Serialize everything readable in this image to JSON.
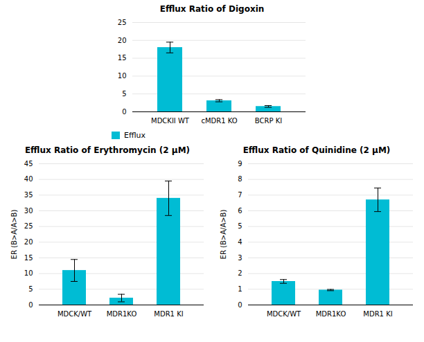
{
  "chart_data": [
    {
      "type": "bar",
      "title": "Efflux Ratio of Digoxin",
      "categories": [
        "MDCKII WT",
        "cMDR1 KO",
        "BCRP KI"
      ],
      "series": [
        {
          "name": "Efflux",
          "color": "#00BCD4",
          "values": [
            18.0,
            3.1,
            1.5
          ],
          "errors": [
            1.5,
            0.3,
            0.25
          ]
        }
      ],
      "ylim": [
        0,
        25
      ],
      "yticks": [
        0,
        5,
        10,
        15,
        20,
        25
      ],
      "grid": true,
      "legend": "lower left"
    },
    {
      "type": "bar",
      "title": "Efflux Ratio of Erythromycin (2 μM)",
      "categories": [
        "MDCK/WT",
        "MDR1KO",
        "MDR1 KI"
      ],
      "values": [
        11.0,
        2.2,
        34.0
      ],
      "errors": [
        3.5,
        1.2,
        5.5
      ],
      "color": "#00BCD4",
      "ylabel": "ER (B>A/A>B)",
      "ylim": [
        0,
        45
      ],
      "yticks": [
        0,
        5,
        10,
        15,
        20,
        25,
        30,
        35,
        40,
        45
      ],
      "grid": true
    },
    {
      "type": "bar",
      "title": "Efflux Ratio of Quinidine (2 μM)",
      "categories": [
        "MDCK/WT",
        "MDR1KO",
        "MDR1 KI"
      ],
      "values": [
        1.5,
        0.95,
        6.7
      ],
      "errors": [
        0.12,
        0.04,
        0.75
      ],
      "color": "#00BCD4",
      "ylabel": "ER (B>A/A>B)",
      "ylim": [
        0,
        9
      ],
      "yticks": [
        0,
        1,
        2,
        3,
        4,
        5,
        6,
        7,
        8,
        9
      ],
      "grid": true
    }
  ]
}
